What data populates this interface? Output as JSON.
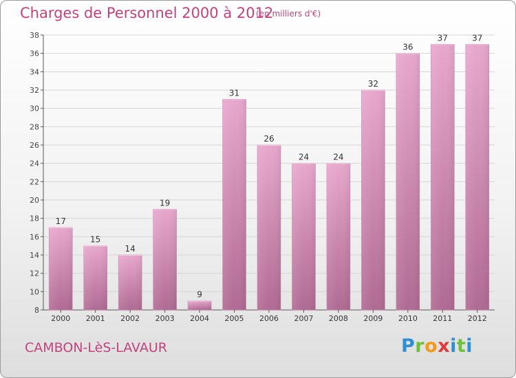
{
  "header": {
    "title": "Charges de Personnel 2000 à 2012",
    "subtitle": "(en milliers d'€)"
  },
  "footer": {
    "commune": "CAMBON-LèS-LAVAUR",
    "logo": "Proxiti"
  },
  "colors": {
    "title": "#c2427e",
    "bar_top": "#e8a7cd",
    "bar_bottom": "#b06a93",
    "axis": "#555555",
    "grid": "#d6d6d6"
  },
  "chart_data": {
    "type": "bar",
    "categories": [
      "2000",
      "2001",
      "2002",
      "2003",
      "2004",
      "2005",
      "2006",
      "2007",
      "2008",
      "2009",
      "2010",
      "2011",
      "2012"
    ],
    "values": [
      17,
      15,
      14,
      19,
      9,
      31,
      26,
      24,
      24,
      32,
      36,
      37,
      37
    ],
    "data_labels": [
      "17",
      "15",
      "14",
      "19",
      "9",
      "31",
      "26",
      "24",
      "24",
      "32",
      "36",
      "37",
      "37"
    ],
    "title": "Charges de Personnel 2000 à 2012",
    "xlabel": "",
    "ylabel": "",
    "ylim": [
      8,
      38
    ],
    "yticks": [
      8,
      10,
      12,
      14,
      16,
      18,
      20,
      22,
      24,
      26,
      28,
      30,
      32,
      34,
      36,
      38
    ],
    "grid": true,
    "legend": "none"
  }
}
